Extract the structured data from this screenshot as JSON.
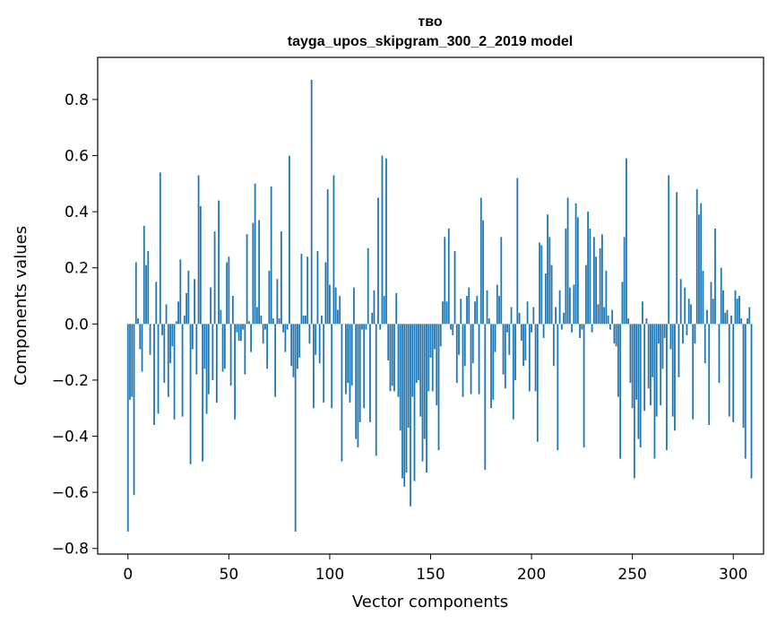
{
  "chart_data": {
    "type": "bar",
    "title_line1": "тво",
    "title_line2": "tayga_upos_skipgram_300_2_2019 model",
    "xlabel": "Vector components",
    "ylabel": "Components values",
    "xlim": [
      -15,
      315
    ],
    "ylim": [
      -0.82,
      0.95
    ],
    "xticks": [
      0,
      50,
      100,
      150,
      200,
      250,
      300
    ],
    "xtick_labels": [
      "0",
      "50",
      "100",
      "150",
      "200",
      "250",
      "300"
    ],
    "yticks": [
      -0.8,
      -0.6,
      -0.4,
      -0.2,
      0.0,
      0.2,
      0.4,
      0.6,
      0.8
    ],
    "ytick_labels": [
      "−0.8",
      "−0.6",
      "−0.4",
      "−0.2",
      "0.0",
      "0.2",
      "0.4",
      "0.6",
      "0.8"
    ],
    "bar_color": "#1f77b4",
    "values": [
      -0.74,
      -0.27,
      -0.26,
      -0.61,
      0.22,
      0.02,
      -0.09,
      -0.17,
      0.35,
      0.21,
      0.26,
      -0.11,
      0.0,
      -0.36,
      0.15,
      -0.32,
      0.54,
      -0.04,
      -0.21,
      0.07,
      -0.26,
      -0.14,
      -0.08,
      -0.34,
      0.01,
      0.08,
      0.23,
      -0.33,
      0.03,
      0.11,
      0.19,
      -0.5,
      -0.09,
      0.16,
      -0.18,
      0.53,
      0.42,
      -0.49,
      -0.16,
      -0.32,
      -0.25,
      0.13,
      -0.2,
      0.33,
      -0.28,
      0.44,
      0.05,
      -0.17,
      -0.16,
      0.22,
      0.24,
      -0.22,
      0.1,
      -0.34,
      -0.03,
      -0.06,
      -0.06,
      -0.02,
      -0.18,
      0.32,
      0.01,
      -0.1,
      0.36,
      0.5,
      0.06,
      0.37,
      0.03,
      -0.07,
      -0.02,
      -0.16,
      0.19,
      0.49,
      0.02,
      -0.26,
      0.16,
      0.02,
      0.33,
      -0.03,
      -0.1,
      -0.02,
      0.6,
      -0.15,
      -0.19,
      -0.74,
      -0.16,
      -0.12,
      0.25,
      0.03,
      0.03,
      0.24,
      -0.07,
      0.87,
      -0.3,
      -0.11,
      0.26,
      -0.14,
      0.03,
      -0.28,
      0.22,
      0.48,
      0.14,
      -0.3,
      0.53,
      0.13,
      0.05,
      0.1,
      -0.49,
      0.0,
      -0.25,
      -0.21,
      -0.28,
      -0.22,
      0.13,
      -0.41,
      -0.44,
      -0.35,
      -0.02,
      -0.3,
      -0.02,
      0.27,
      -0.35,
      0.04,
      0.12,
      -0.47,
      0.45,
      -0.02,
      0.6,
      0.1,
      0.59,
      -0.13,
      -0.24,
      -0.22,
      -0.24,
      0.11,
      -0.26,
      -0.38,
      -0.55,
      -0.58,
      -0.53,
      -0.37,
      -0.65,
      -0.26,
      -0.56,
      -0.21,
      -0.2,
      -0.33,
      -0.49,
      -0.41,
      -0.53,
      -0.24,
      -0.12,
      -0.24,
      -0.09,
      -0.29,
      -0.45,
      -0.08,
      0.08,
      0.31,
      0.08,
      0.34,
      -0.02,
      -0.04,
      0.26,
      -0.21,
      -0.11,
      0.09,
      -0.26,
      -0.15,
      0.1,
      0.13,
      -0.25,
      -0.14,
      0.08,
      0.1,
      -0.25,
      0.45,
      0.37,
      -0.52,
      0.12,
      0.02,
      -0.3,
      -0.27,
      -0.1,
      0.14,
      0.1,
      0.31,
      -0.18,
      -0.23,
      -0.03,
      -0.11,
      0.06,
      -0.34,
      -0.2,
      0.52,
      0.04,
      -0.06,
      -0.15,
      -0.13,
      0.08,
      -0.24,
      -0.03,
      0.06,
      -0.24,
      -0.42,
      0.29,
      0.28,
      -0.05,
      0.18,
      0.39,
      0.31,
      0.21,
      -0.15,
      0.06,
      -0.45,
      0.12,
      -0.02,
      0.04,
      0.34,
      0.45,
      0.13,
      -0.03,
      0.14,
      0.43,
      0.38,
      -0.05,
      -0.02,
      -0.44,
      0.21,
      0.4,
      0.34,
      -0.03,
      0.31,
      0.24,
      0.07,
      0.27,
      0.32,
      0.06,
      0.19,
      0.03,
      -0.02,
      0.05,
      -0.07,
      -0.08,
      -0.26,
      -0.48,
      0.15,
      0.31,
      0.59,
      0.02,
      -0.21,
      -0.3,
      -0.55,
      -0.27,
      -0.41,
      -0.44,
      0.08,
      -0.31,
      0.02,
      -0.23,
      -0.29,
      -0.19,
      -0.48,
      -0.33,
      -0.07,
      -0.29,
      -0.16,
      -0.05,
      -0.45,
      0.53,
      -0.09,
      -0.33,
      -0.38,
      0.47,
      -0.19,
      0.16,
      -0.07,
      0.13,
      -0.04,
      0.09,
      0.07,
      -0.34,
      -0.07,
      0.48,
      0.39,
      0.43,
      0.19,
      -0.14,
      0.05,
      -0.36,
      0.15,
      0.09,
      0.34,
      0.0,
      -0.21,
      0.2,
      0.12,
      0.04,
      0.05,
      -0.33,
      0.03,
      -0.35,
      0.12,
      0.09,
      0.1,
      0.02,
      -0.37,
      -0.48,
      0.02,
      0.06,
      -0.55
    ]
  }
}
